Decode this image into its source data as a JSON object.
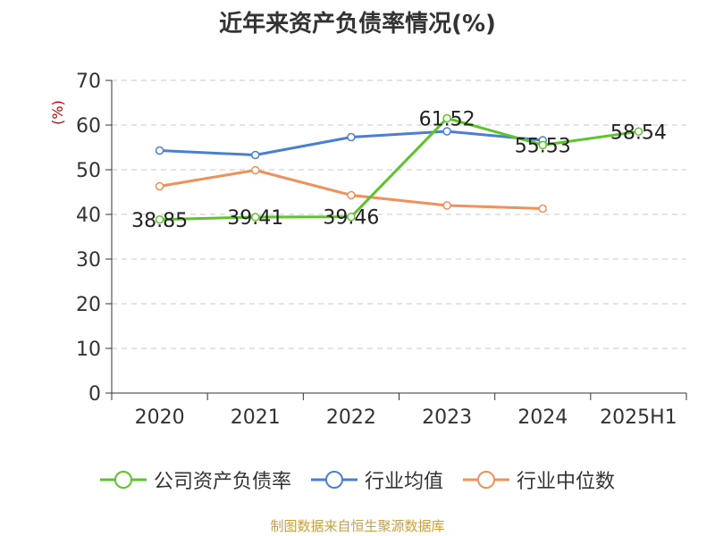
{
  "chart_data": {
    "type": "line",
    "title": "近年来资产负债率情况(%)",
    "ylabel": "(%)",
    "xlabel": "",
    "categories": [
      "2020",
      "2021",
      "2022",
      "2023",
      "2024",
      "2025H1"
    ],
    "ylim": [
      0,
      70
    ],
    "yticks": [
      0,
      10,
      20,
      30,
      40,
      50,
      60,
      70
    ],
    "grid": true,
    "legend_position": "bottom",
    "series": [
      {
        "name": "公司资产负债率",
        "color": "#5ec42c",
        "values": [
          38.85,
          39.41,
          39.46,
          61.52,
          55.53,
          58.54
        ],
        "labels": [
          "38.85",
          "39.41",
          "39.46",
          "61.52",
          "55.53",
          "58.54"
        ]
      },
      {
        "name": "行业均值",
        "color": "#4a7fd4",
        "values": [
          54.3,
          53.3,
          57.3,
          58.6,
          56.6,
          null
        ]
      },
      {
        "name": "行业中位数",
        "color": "#f0905a",
        "values": [
          46.3,
          49.9,
          44.3,
          42.0,
          41.3,
          null
        ]
      }
    ]
  },
  "source_note": "制图数据来自恒生聚源数据库"
}
